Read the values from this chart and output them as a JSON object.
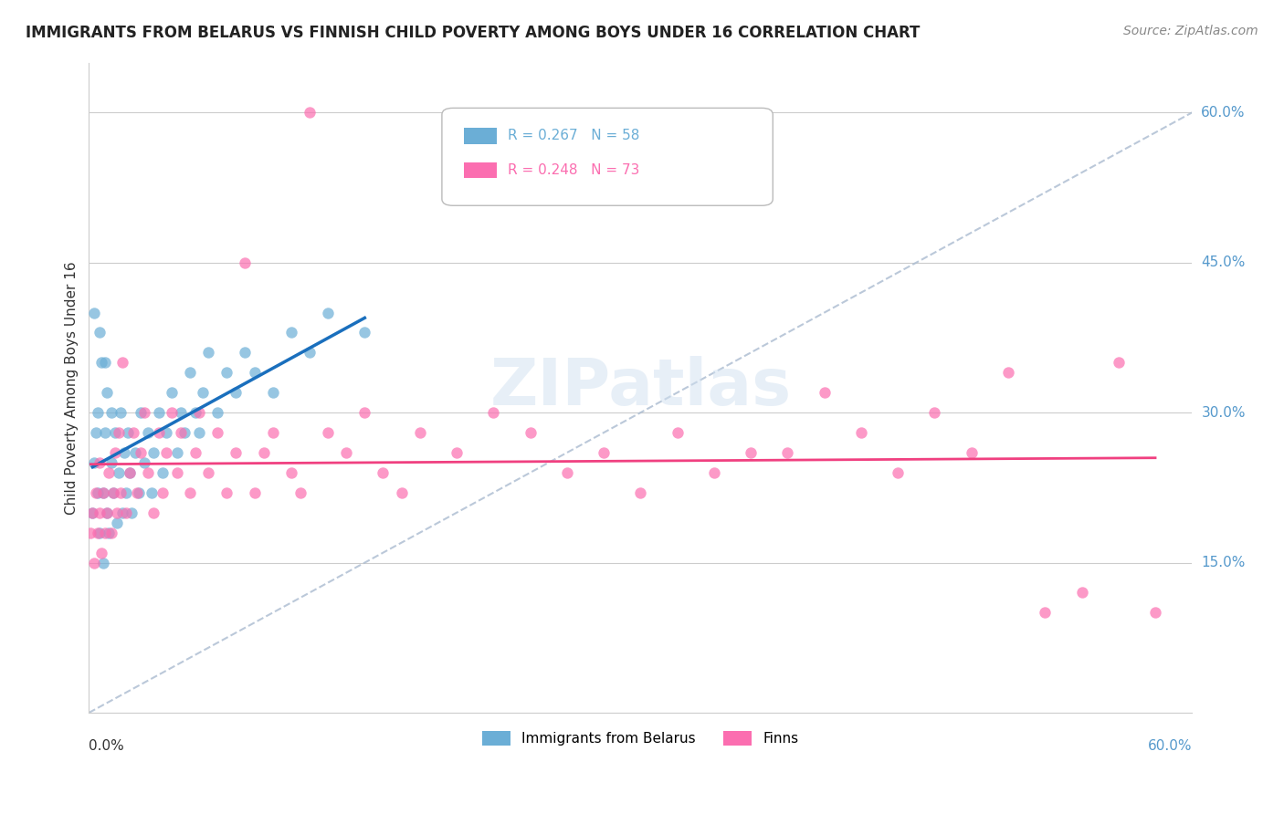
{
  "title": "IMMIGRANTS FROM BELARUS VS FINNISH CHILD POVERTY AMONG BOYS UNDER 16 CORRELATION CHART",
  "source": "Source: ZipAtlas.com",
  "ylabel": "Child Poverty Among Boys Under 16",
  "ytick_values": [
    0.15,
    0.3,
    0.45,
    0.6
  ],
  "xlim": [
    0.0,
    0.6
  ],
  "ylim": [
    0.0,
    0.65
  ],
  "watermark": "ZIPatlas",
  "series1_color": "#6baed6",
  "series2_color": "#fb6eb0",
  "series1_line_color": "#1a6fbd",
  "series2_line_color": "#f04080",
  "diag_color": "#aabbd0",
  "legend1_label": "R = 0.267   N = 58",
  "legend2_label": "R = 0.248   N = 73",
  "bottom_legend1": "Immigrants from Belarus",
  "bottom_legend2": "Finns"
}
